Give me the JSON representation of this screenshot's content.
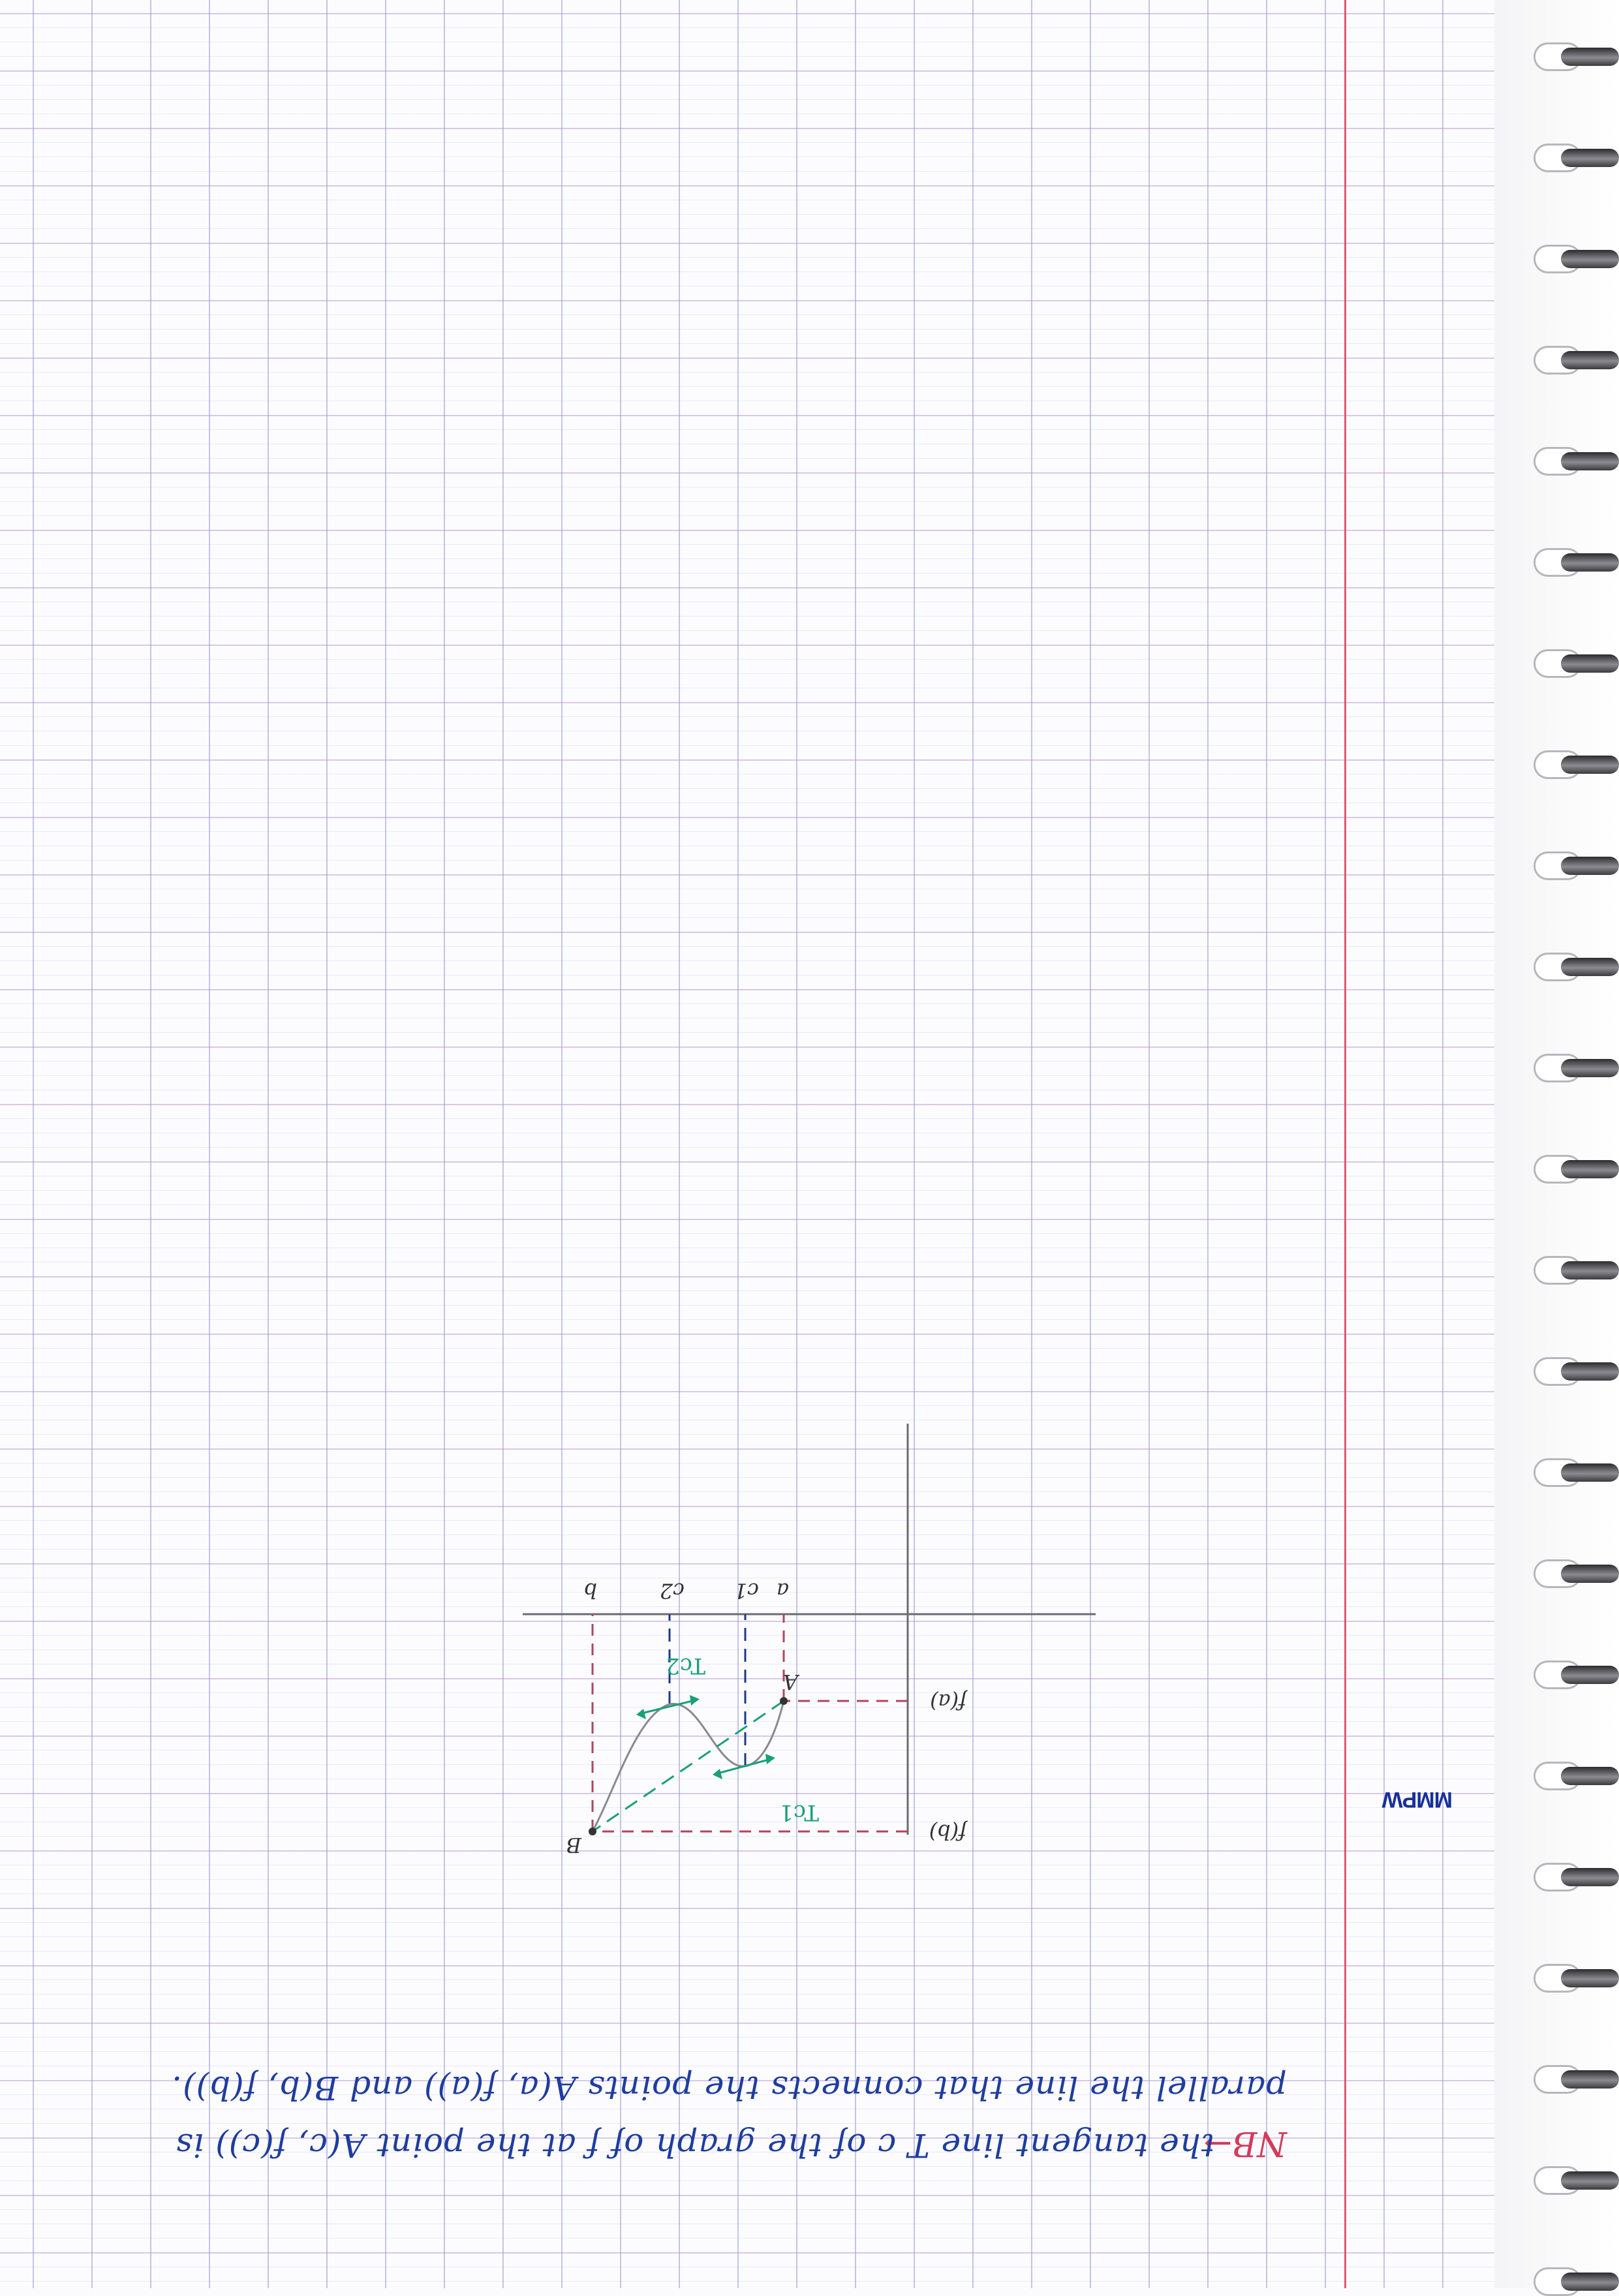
{
  "note": {
    "prefix": "NB→",
    "line1": "the tangent line T c of the graph of f at the point A(c, f(c)) is",
    "line2": "parallel the line that connects the points A(a, f(a)) and B(b, f(b)).",
    "stamp": "MMPW"
  },
  "graph": {
    "labels": {
      "point_a": "A",
      "point_b": "B",
      "x_a": "a",
      "x_c1": "c1",
      "x_c2": "c2",
      "x_b": "b",
      "y_fa": "f(a)",
      "y_fb": "f(b)",
      "tangent_c1": "Tc1",
      "tangent_c2": "Tc2"
    },
    "colors": {
      "axis": "#6b6b70",
      "curve": "#8a8a8e",
      "dashed_guides": "#b0455c",
      "c_guides": "#1d3a8a",
      "tangents": "#1a9f7a",
      "secant": "#1a9f7a"
    }
  }
}
